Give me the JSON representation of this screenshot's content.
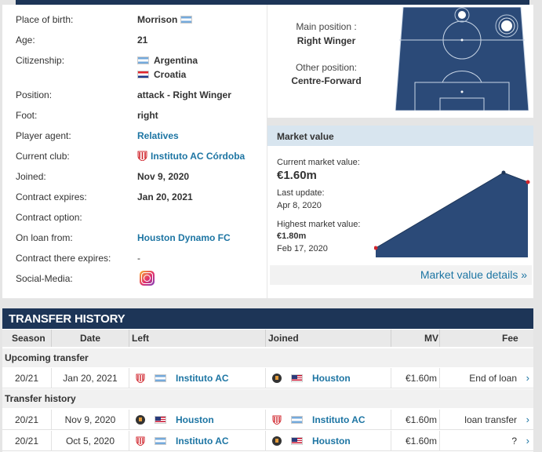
{
  "profile": {
    "place_of_birth_label": "Place of birth:",
    "place_of_birth": "Morrison",
    "age_label": "Age:",
    "age": "21",
    "citizenship_label": "Citizenship:",
    "citizenship_1": "Argentina",
    "citizenship_2": "Croatia",
    "position_label": "Position:",
    "position": "attack - Right Winger",
    "foot_label": "Foot:",
    "foot": "right",
    "agent_label": "Player agent:",
    "agent": "Relatives",
    "club_label": "Current club:",
    "club": "Instituto AC Córdoba",
    "joined_label": "Joined:",
    "joined": "Nov 9, 2020",
    "expires_label": "Contract expires:",
    "expires": "Jan 20, 2021",
    "option_label": "Contract option:",
    "loan_label": "On loan from:",
    "loan_from": "Houston Dynamo FC",
    "loan_expires_label": "Contract there expires:",
    "loan_expires": "-",
    "social_label": "Social-Media:",
    "social_icon": "instagram-icon"
  },
  "positions": {
    "main_title": "Main position :",
    "main_value": "Right Winger",
    "other_title": "Other position:",
    "other_value": "Centre-Forward"
  },
  "market_value": {
    "heading": "Market value",
    "current_label": "Current market value:",
    "current": "€1.60m",
    "update_label": "Last update:",
    "update": "Apr 8, 2020",
    "highest_label": "Highest market value:",
    "highest": "€1.80m",
    "highest_date": "Feb 17, 2020",
    "details_link": "Market value details »",
    "colors": {
      "area": "#2b4a78",
      "header": "#d8e5ef"
    }
  },
  "chart_data": {
    "type": "area",
    "series": [
      {
        "values": [
          0.2,
          1.8,
          1.6
        ]
      }
    ],
    "xlabel": "",
    "ylabel": ""
  },
  "transfer_history": {
    "title": "TRANSFER HISTORY",
    "columns": {
      "season": "Season",
      "date": "Date",
      "left": "Left",
      "joined": "Joined",
      "mv": "MV",
      "fee": "Fee"
    },
    "upcoming_label": "Upcoming transfer",
    "history_label": "Transfer history",
    "upcoming": [
      {
        "season": "20/21",
        "date": "Jan 20, 2021",
        "left": "Instituto AC",
        "joined": "Houston",
        "mv": "€1.60m",
        "fee": "End of loan"
      }
    ],
    "rows": [
      {
        "season": "20/21",
        "date": "Nov 9, 2020",
        "left": "Houston",
        "joined": "Instituto AC",
        "mv": "€1.60m",
        "fee": "loan transfer"
      },
      {
        "season": "20/21",
        "date": "Oct 5, 2020",
        "left": "Instituto AC",
        "joined": "Houston",
        "mv": "€1.60m",
        "fee": "?"
      }
    ]
  }
}
